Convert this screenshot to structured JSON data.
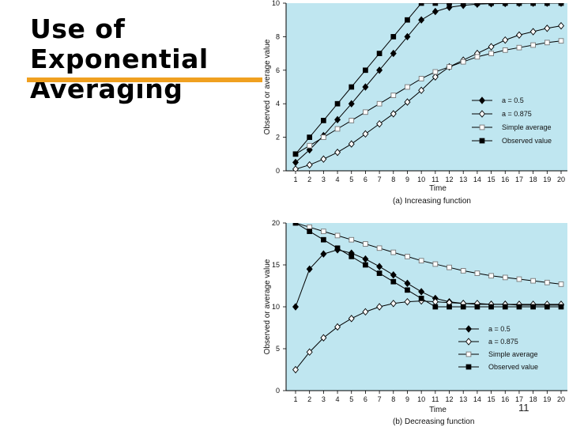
{
  "slide": {
    "title_lines": [
      "Use of",
      "Exponential",
      "Averaging"
    ],
    "accent_color": "#f0a020",
    "page_number": "11"
  },
  "chart_data": [
    {
      "type": "line",
      "caption": "(a) Increasing function",
      "xlabel": "Time",
      "ylabel": "Observed or average value",
      "x": [
        1,
        2,
        3,
        4,
        5,
        6,
        7,
        8,
        9,
        10,
        11,
        12,
        13,
        14,
        15,
        16,
        17,
        18,
        19,
        20
      ],
      "xlim": [
        1,
        20
      ],
      "ylim": [
        0,
        10
      ],
      "yticks": [
        0,
        2,
        4,
        6,
        8,
        10
      ],
      "ytick_labels": [
        "0",
        "2",
        "4",
        "6",
        "8",
        "10"
      ],
      "plot_bg": "#bfe6f0",
      "legend_position": "middle-right",
      "series": [
        {
          "name": "a = 0.5",
          "marker": "filled-diamond",
          "color": "#000000",
          "values": [
            0.5,
            1.25,
            2.1,
            3.05,
            4.0,
            5.0,
            6.0,
            7.0,
            8.0,
            9.0,
            9.5,
            9.75,
            9.87,
            9.94,
            9.97,
            9.98,
            9.99,
            10.0,
            10.0,
            10.0
          ]
        },
        {
          "name": "a = 0.875",
          "marker": "open-diamond",
          "color": "#000000",
          "values": [
            0.1,
            0.35,
            0.7,
            1.1,
            1.6,
            2.2,
            2.8,
            3.4,
            4.1,
            4.8,
            5.6,
            6.2,
            6.6,
            7.0,
            7.4,
            7.8,
            8.1,
            8.3,
            8.5,
            8.65
          ]
        },
        {
          "name": "Simple average",
          "marker": "open-square",
          "color": "#000000",
          "values": [
            1.0,
            1.5,
            2.0,
            2.5,
            3.0,
            3.5,
            4.0,
            4.5,
            5.0,
            5.5,
            5.9,
            6.2,
            6.5,
            6.8,
            7.0,
            7.2,
            7.35,
            7.5,
            7.65,
            7.75
          ]
        },
        {
          "name": "Observed value",
          "marker": "filled-square",
          "color": "#000000",
          "values": [
            1,
            2,
            3,
            4,
            5,
            6,
            7,
            8,
            9,
            10,
            10,
            10,
            10,
            10,
            10,
            10,
            10,
            10,
            10,
            10
          ]
        }
      ]
    },
    {
      "type": "line",
      "caption": "(b) Decreasing function",
      "xlabel": "Time",
      "ylabel": "Observed or average value",
      "x": [
        1,
        2,
        3,
        4,
        5,
        6,
        7,
        8,
        9,
        10,
        11,
        12,
        13,
        14,
        15,
        16,
        17,
        18,
        19,
        20
      ],
      "xlim": [
        1,
        20
      ],
      "ylim": [
        0,
        20
      ],
      "yticks": [
        0,
        5,
        10,
        15,
        20
      ],
      "ytick_labels": [
        "0",
        "5",
        "10",
        "15",
        "20"
      ],
      "plot_bg": "#bfe6f0",
      "legend_position": "bottom-right",
      "series": [
        {
          "name": "a = 0.5",
          "marker": "filled-diamond",
          "color": "#000000",
          "values": [
            10.0,
            14.5,
            16.3,
            16.8,
            16.4,
            15.7,
            14.8,
            13.8,
            12.8,
            11.8,
            11.0,
            10.6,
            10.4,
            10.3,
            10.3,
            10.3,
            10.2,
            10.2,
            10.2,
            10.2
          ]
        },
        {
          "name": "a = 0.875",
          "marker": "open-diamond",
          "color": "#000000",
          "values": [
            2.5,
            4.6,
            6.3,
            7.6,
            8.6,
            9.4,
            10.0,
            10.4,
            10.6,
            10.7,
            10.6,
            10.5,
            10.4,
            10.4,
            10.3,
            10.3,
            10.3,
            10.3,
            10.3,
            10.3
          ]
        },
        {
          "name": "Simple average",
          "marker": "open-square",
          "color": "#000000",
          "values": [
            20.0,
            19.5,
            19.0,
            18.5,
            18.0,
            17.5,
            17.0,
            16.5,
            16.0,
            15.5,
            15.1,
            14.7,
            14.3,
            14.0,
            13.7,
            13.5,
            13.3,
            13.1,
            12.9,
            12.7
          ]
        },
        {
          "name": "Observed value",
          "marker": "filled-square",
          "color": "#000000",
          "values": [
            20,
            19,
            18,
            17,
            16,
            15,
            14,
            13,
            12,
            11,
            10,
            10,
            10,
            10,
            10,
            10,
            10,
            10,
            10,
            10
          ]
        }
      ]
    }
  ]
}
